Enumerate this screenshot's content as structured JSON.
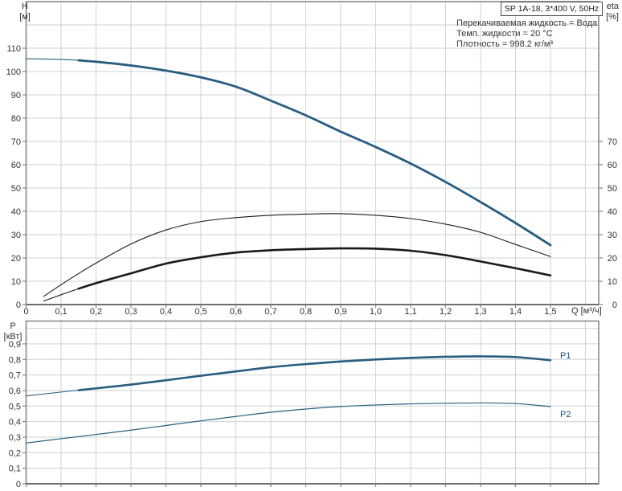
{
  "title_box": "SP 1A-18, 3*400 V, 50Hz",
  "conditions": {
    "fluid": "Перекачиваемая жидкость = Вода",
    "temperature": "Темп. жидкости = 20 °C",
    "density": "Плотность = 998.2 кг/м³"
  },
  "axis_labels": {
    "head": "H",
    "head_unit": "[м]",
    "eta": "eta",
    "eta_unit": "[%]",
    "flow": "Q [м³/ч]",
    "power": "P",
    "power_unit": "[кВт]"
  },
  "curve_labels": {
    "p1": "P1",
    "p2": "P2"
  },
  "colors": {
    "curve_blue": "#275d7f",
    "curve_black": "#1a1a1a",
    "grid": "#cdd2d6",
    "frame": "#828282",
    "axis_text": "#333333",
    "curve_label_blue": "#1d4e74"
  },
  "chart_data": [
    {
      "type": "line",
      "title": "SP 1A-18, 3*400 V, 50Hz",
      "xlabel": "Q [м³/ч]",
      "ylabel": "H [м]",
      "y2label": "eta [%]",
      "xlim": [
        0,
        1.64
      ],
      "ylim": [
        0,
        130
      ],
      "y2lim": [
        0,
        130
      ],
      "grid": true,
      "legend": "none",
      "x_ticks": [
        0,
        0.1,
        0.2,
        0.3,
        0.4,
        0.5,
        0.6,
        0.7,
        0.8,
        0.9,
        1.0,
        1.1,
        1.2,
        1.3,
        1.4,
        1.5
      ],
      "x_tick_labels": [
        "0",
        "0,1",
        "0,2",
        "0,3",
        "0,4",
        "0,5",
        "0,6",
        "0,7",
        "0,8",
        "0,9",
        "1,0",
        "1,1",
        "1,2",
        "1,3",
        "1,4",
        "1,5"
      ],
      "y_ticks": [
        0,
        10,
        20,
        30,
        40,
        50,
        60,
        70,
        80,
        90,
        100,
        110
      ],
      "y2_ticks": [
        0,
        10,
        20,
        30,
        40,
        50,
        60,
        70
      ],
      "series": [
        {
          "name": "head-curve-H",
          "color_key": "curve_blue",
          "width": 2.8,
          "thin_width": 1.1,
          "bold_from": 0.15,
          "points": [
            [
              0,
              105.5
            ],
            [
              0.1,
              105.2
            ],
            [
              0.15,
              104.8
            ],
            [
              0.2,
              104.2
            ],
            [
              0.3,
              102.6
            ],
            [
              0.4,
              100.4
            ],
            [
              0.5,
              97.5
            ],
            [
              0.6,
              93.5
            ],
            [
              0.7,
              87.5
            ],
            [
              0.8,
              81.2
            ],
            [
              0.9,
              74.2
            ],
            [
              1,
              67.6
            ],
            [
              1.1,
              60.5
            ],
            [
              1.2,
              52.6
            ],
            [
              1.3,
              44
            ],
            [
              1.4,
              35
            ],
            [
              1.5,
              25.5
            ]
          ]
        },
        {
          "name": "efficiency-pump-thin",
          "color_key": "curve_black",
          "width": 1.1,
          "points": [
            [
              0.05,
              3.5
            ],
            [
              0.1,
              8.5
            ],
            [
              0.15,
              13.3
            ],
            [
              0.2,
              17.8
            ],
            [
              0.3,
              26
            ],
            [
              0.4,
              32
            ],
            [
              0.5,
              35.6
            ],
            [
              0.6,
              37.3
            ],
            [
              0.7,
              38.3
            ],
            [
              0.8,
              38.8
            ],
            [
              0.9,
              39
            ],
            [
              1,
              38.3
            ],
            [
              1.1,
              36.9
            ],
            [
              1.2,
              34.5
            ],
            [
              1.3,
              31
            ],
            [
              1.4,
              25.8
            ],
            [
              1.5,
              20.6
            ]
          ]
        },
        {
          "name": "efficiency-total-bold",
          "color_key": "curve_black",
          "width": 2.6,
          "thin_width": 1.1,
          "bold_from": 0.15,
          "points": [
            [
              0.05,
              1.5
            ],
            [
              0.1,
              4.2
            ],
            [
              0.15,
              6.8
            ],
            [
              0.2,
              9.2
            ],
            [
              0.3,
              13.4
            ],
            [
              0.4,
              17.6
            ],
            [
              0.5,
              20.3
            ],
            [
              0.6,
              22.3
            ],
            [
              0.7,
              23.3
            ],
            [
              0.8,
              23.8
            ],
            [
              0.9,
              24.1
            ],
            [
              1,
              24
            ],
            [
              1.1,
              23.1
            ],
            [
              1.2,
              21.2
            ],
            [
              1.3,
              18.5
            ],
            [
              1.4,
              15.6
            ],
            [
              1.5,
              12.5
            ]
          ]
        }
      ]
    },
    {
      "type": "line",
      "title": "",
      "xlabel": "",
      "ylabel": "P [кВт]",
      "xlim": [
        0,
        1.64
      ],
      "ylim": [
        0,
        1.047
      ],
      "grid": true,
      "legend": "inline-labels",
      "y_ticks": [
        0,
        0.1,
        0.2,
        0.3,
        0.4,
        0.5,
        0.6,
        0.7,
        0.8,
        0.9
      ],
      "y_tick_labels": [
        "0",
        "0,1",
        "0,2",
        "0,3",
        "0,4",
        "0,5",
        "0,6",
        "0,7",
        "0,8",
        "0,9"
      ],
      "series": [
        {
          "name": "power-P1",
          "label": "P1",
          "color_key": "curve_blue",
          "width": 2.6,
          "thin_width": 1.1,
          "bold_from": 0.15,
          "points": [
            [
              0,
              0.565
            ],
            [
              0.1,
              0.59
            ],
            [
              0.15,
              0.602
            ],
            [
              0.2,
              0.614
            ],
            [
              0.3,
              0.638
            ],
            [
              0.4,
              0.666
            ],
            [
              0.5,
              0.695
            ],
            [
              0.6,
              0.723
            ],
            [
              0.7,
              0.75
            ],
            [
              0.8,
              0.77
            ],
            [
              0.9,
              0.787
            ],
            [
              1,
              0.8
            ],
            [
              1.1,
              0.81
            ],
            [
              1.2,
              0.817
            ],
            [
              1.3,
              0.82
            ],
            [
              1.4,
              0.815
            ],
            [
              1.5,
              0.795
            ]
          ]
        },
        {
          "name": "power-P2",
          "label": "P2",
          "color_key": "curve_blue",
          "width": 1.2,
          "points": [
            [
              0,
              0.262
            ],
            [
              0.1,
              0.29
            ],
            [
              0.2,
              0.317
            ],
            [
              0.3,
              0.345
            ],
            [
              0.4,
              0.375
            ],
            [
              0.5,
              0.405
            ],
            [
              0.6,
              0.433
            ],
            [
              0.7,
              0.46
            ],
            [
              0.8,
              0.481
            ],
            [
              0.9,
              0.497
            ],
            [
              1,
              0.507
            ],
            [
              1.1,
              0.514
            ],
            [
              1.2,
              0.518
            ],
            [
              1.3,
              0.52
            ],
            [
              1.4,
              0.516
            ],
            [
              1.5,
              0.497
            ]
          ]
        }
      ]
    }
  ]
}
